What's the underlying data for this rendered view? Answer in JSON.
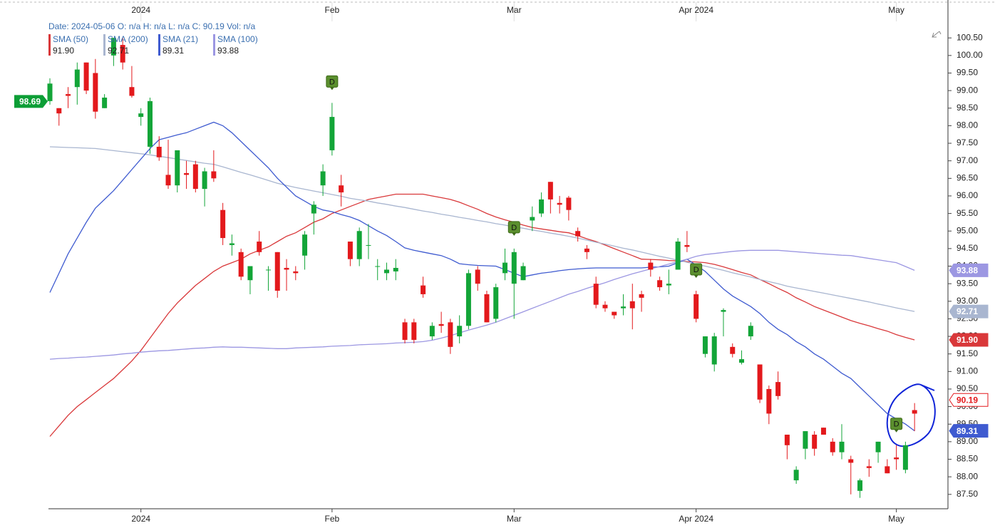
{
  "chart_data": {
    "type": "candlestick",
    "header": "Date: 2024-05-06 O: n/a H: n/a L: n/a C: 90.19 Vol: n/a",
    "categories": [
      null,
      null,
      null,
      null,
      null,
      null,
      null,
      null,
      null,
      null,
      "2024",
      null,
      null,
      null,
      null,
      null,
      null,
      null,
      null,
      null,
      null,
      null,
      null,
      null,
      null,
      null,
      null,
      null,
      null,
      null,
      null,
      "Feb",
      null,
      null,
      null,
      null,
      null,
      null,
      null,
      null,
      null,
      null,
      null,
      null,
      null,
      null,
      null,
      null,
      null,
      null,
      null,
      "Mar",
      null,
      null,
      null,
      null,
      null,
      null,
      null,
      null,
      null,
      null,
      null,
      null,
      null,
      null,
      null,
      null,
      null,
      null,
      null,
      "Apr 2024",
      null,
      null,
      null,
      null,
      null,
      null,
      null,
      null,
      null,
      null,
      null,
      null,
      null,
      null,
      null,
      null,
      null,
      null,
      null,
      null,
      null,
      "May",
      null,
      null
    ],
    "open": [
      98.7,
      98.5,
      98.9,
      99.1,
      99.8,
      99.5,
      98.5,
      100.0,
      100.3,
      99.1,
      98.25,
      97.4,
      97.4,
      96.6,
      96.3,
      96.65,
      96.9,
      96.2,
      96.7,
      95.6,
      94.6,
      94.4,
      93.6,
      94.7,
      93.9,
      94.4,
      93.95,
      93.85,
      94.3,
      95.5,
      96.3,
      97.3,
      96.3,
      94.7,
      94.2,
      94.6,
      94.0,
      93.8,
      93.85,
      92.4,
      92.4,
      93.45,
      92.0,
      92.35,
      92.4,
      92.0,
      92.3,
      93.9,
      93.2,
      92.5,
      93.8,
      93.5,
      93.6,
      95.3,
      95.5,
      96.4,
      95.8,
      95.95,
      95.0,
      94.5,
      93.5,
      92.9,
      92.7,
      92.8,
      93.0,
      93.2,
      94.1,
      93.6,
      93.45,
      93.9,
      94.6,
      93.2,
      91.5,
      91.2,
      92.7,
      91.7,
      91.25,
      92.0,
      91.2,
      90.5,
      90.7,
      89.2,
      87.9,
      88.8,
      89.2,
      89.4,
      89.0,
      88.7,
      88.5,
      87.6,
      88.3,
      88.7,
      88.3,
      88.55,
      88.2,
      89.9
    ],
    "high": [
      99.35,
      98.5,
      99.1,
      99.8,
      99.8,
      99.9,
      98.9,
      100.5,
      100.5,
      99.7,
      98.5,
      98.8,
      97.7,
      97.6,
      97.2,
      97.0,
      97.0,
      96.8,
      97.3,
      95.8,
      94.9,
      94.5,
      94.0,
      95.0,
      94.0,
      94.4,
      94.2,
      94.0,
      95.0,
      95.85,
      96.9,
      98.65,
      96.6,
      94.7,
      95.1,
      95.2,
      94.2,
      94.1,
      94.2,
      92.5,
      92.5,
      93.7,
      92.4,
      92.7,
      92.5,
      92.6,
      93.9,
      94.0,
      93.3,
      93.5,
      94.5,
      94.5,
      94.1,
      95.7,
      96.1,
      96.4,
      96.0,
      96.0,
      95.1,
      94.6,
      93.7,
      93.0,
      92.7,
      93.2,
      93.5,
      93.3,
      94.2,
      93.7,
      93.9,
      94.8,
      95.0,
      93.3,
      92.0,
      92.1,
      92.8,
      91.8,
      91.6,
      92.4,
      91.2,
      90.6,
      91.0,
      89.2,
      88.3,
      89.3,
      89.3,
      89.4,
      89.1,
      89.5,
      88.6,
      87.95,
      88.5,
      89.0,
      88.5,
      88.9,
      89.0,
      90.1
    ],
    "low": [
      98.6,
      98.0,
      98.5,
      98.6,
      98.9,
      98.2,
      98.5,
      99.7,
      99.6,
      98.8,
      98.0,
      97.2,
      97.0,
      96.2,
      96.1,
      96.2,
      96.1,
      95.7,
      96.4,
      94.6,
      94.3,
      93.6,
      93.2,
      94.3,
      93.3,
      93.1,
      93.3,
      93.6,
      93.9,
      94.9,
      96.0,
      97.15,
      95.7,
      94.0,
      94.0,
      94.2,
      93.6,
      93.6,
      93.6,
      91.8,
      91.8,
      93.1,
      91.9,
      92.1,
      91.5,
      91.8,
      92.2,
      93.3,
      92.4,
      92.4,
      93.6,
      92.5,
      93.6,
      95.0,
      95.4,
      95.5,
      95.5,
      95.3,
      94.7,
      94.2,
      92.8,
      92.7,
      92.5,
      92.6,
      92.2,
      92.7,
      93.7,
      93.3,
      93.2,
      93.9,
      94.4,
      92.4,
      91.4,
      91.0,
      92.0,
      91.4,
      91.2,
      91.9,
      90.1,
      89.5,
      90.2,
      88.5,
      87.8,
      88.5,
      88.6,
      89.2,
      88.6,
      88.5,
      87.5,
      87.4,
      88.0,
      88.4,
      88.1,
      88.2,
      88.1,
      89.3
    ],
    "close": [
      99.2,
      98.35,
      98.85,
      99.6,
      99.0,
      98.4,
      98.8,
      100.5,
      99.8,
      98.85,
      98.35,
      98.7,
      97.1,
      96.3,
      97.3,
      96.6,
      96.2,
      96.7,
      96.5,
      94.8,
      94.65,
      93.7,
      94.0,
      94.4,
      93.9,
      93.3,
      93.9,
      93.8,
      94.9,
      95.75,
      96.7,
      98.25,
      96.1,
      94.2,
      95.0,
      94.6,
      94.0,
      93.9,
      93.95,
      91.9,
      91.9,
      93.2,
      92.3,
      92.3,
      91.7,
      92.3,
      93.8,
      93.5,
      92.4,
      93.4,
      94.1,
      94.4,
      94.0,
      95.4,
      95.9,
      95.9,
      95.75,
      95.6,
      94.85,
      94.4,
      92.9,
      92.8,
      92.6,
      92.85,
      92.8,
      93.1,
      93.9,
      93.4,
      93.5,
      94.7,
      94.55,
      92.5,
      92.0,
      92.0,
      92.75,
      91.5,
      91.35,
      92.3,
      90.2,
      89.8,
      90.3,
      88.9,
      88.2,
      89.3,
      88.8,
      89.2,
      88.7,
      89.0,
      88.4,
      87.9,
      88.25,
      89.0,
      88.1,
      88.5,
      88.9,
      89.8
    ],
    "up_color": "#13a538",
    "down_color": "#e3191c",
    "series": [
      {
        "name": "SMA (50)",
        "legend_value": "91.90",
        "color": "#d9383a",
        "values": [
          89.15,
          89.45,
          89.75,
          90.0,
          90.2,
          90.4,
          90.6,
          90.8,
          91.05,
          91.3,
          91.6,
          91.95,
          92.3,
          92.65,
          92.95,
          93.2,
          93.45,
          93.65,
          93.85,
          94.0,
          94.1,
          94.2,
          94.35,
          94.45,
          94.55,
          94.7,
          94.85,
          94.95,
          95.1,
          95.25,
          95.35,
          95.5,
          95.6,
          95.7,
          95.8,
          95.9,
          95.95,
          96.0,
          96.05,
          96.05,
          96.05,
          96.05,
          96.0,
          95.95,
          95.9,
          95.82,
          95.72,
          95.62,
          95.5,
          95.4,
          95.32,
          95.25,
          95.17,
          95.1,
          95.06,
          95.02,
          94.98,
          94.95,
          94.87,
          94.78,
          94.7,
          94.6,
          94.5,
          94.4,
          94.3,
          94.2,
          94.19,
          94.18,
          94.16,
          94.15,
          94.13,
          94.12,
          94.1,
          94.05,
          93.98,
          93.9,
          93.82,
          93.75,
          93.62,
          93.5,
          93.37,
          93.25,
          93.1,
          92.98,
          92.85,
          92.75,
          92.65,
          92.55,
          92.45,
          92.37,
          92.3,
          92.22,
          92.15,
          92.05,
          91.97,
          91.9
        ]
      },
      {
        "name": "SMA (200)",
        "legend_value": "92.71",
        "color": "#a9b6d0",
        "values": [
          97.4,
          97.39,
          97.38,
          97.37,
          97.36,
          97.35,
          97.32,
          97.29,
          97.26,
          97.23,
          97.2,
          97.17,
          97.13,
          97.09,
          97.05,
          97.01,
          96.97,
          96.93,
          96.9,
          96.83,
          96.75,
          96.67,
          96.6,
          96.52,
          96.44,
          96.36,
          96.3,
          96.24,
          96.19,
          96.14,
          96.09,
          96.04,
          95.99,
          95.93,
          95.89,
          95.85,
          95.8,
          95.76,
          95.71,
          95.67,
          95.62,
          95.57,
          95.53,
          95.48,
          95.44,
          95.39,
          95.35,
          95.3,
          95.26,
          95.21,
          95.17,
          95.12,
          95.08,
          95.03,
          94.99,
          94.94,
          94.9,
          94.85,
          94.8,
          94.74,
          94.68,
          94.63,
          94.57,
          94.51,
          94.46,
          94.4,
          94.34,
          94.28,
          94.23,
          94.17,
          94.11,
          94.05,
          94.0,
          93.94,
          93.88,
          93.81,
          93.75,
          93.69,
          93.62,
          93.56,
          93.5,
          93.43,
          93.38,
          93.33,
          93.28,
          93.23,
          93.18,
          93.13,
          93.08,
          93.03,
          92.98,
          92.92,
          92.87,
          92.81,
          92.76,
          92.71
        ]
      },
      {
        "name": "SMA (21)",
        "legend_value": "89.31",
        "color": "#3f5bd0",
        "values": [
          93.25,
          93.8,
          94.35,
          94.8,
          95.25,
          95.65,
          95.9,
          96.15,
          96.45,
          96.75,
          97.05,
          97.35,
          97.6,
          97.67,
          97.74,
          97.8,
          97.9,
          98.0,
          98.1,
          98.0,
          97.8,
          97.55,
          97.3,
          97.05,
          96.8,
          96.5,
          96.25,
          96.0,
          95.85,
          95.7,
          95.6,
          95.55,
          95.47,
          95.4,
          95.3,
          95.15,
          95.0,
          94.87,
          94.7,
          94.52,
          94.45,
          94.4,
          94.35,
          94.3,
          94.2,
          94.07,
          94.04,
          94.02,
          94.01,
          94.0,
          93.9,
          93.8,
          93.7,
          93.75,
          93.8,
          93.83,
          93.87,
          93.9,
          93.92,
          93.94,
          93.95,
          93.95,
          93.95,
          93.95,
          93.95,
          93.95,
          93.97,
          93.98,
          94.0,
          94.1,
          94.2,
          94.03,
          93.85,
          93.6,
          93.35,
          93.15,
          93.0,
          92.85,
          92.65,
          92.4,
          92.2,
          92.05,
          91.85,
          91.7,
          91.5,
          91.35,
          91.15,
          90.95,
          90.8,
          90.55,
          90.3,
          90.05,
          89.8,
          89.65,
          89.5,
          89.31
        ]
      },
      {
        "name": "SMA (100)",
        "legend_value": "93.88",
        "color": "#9c97e2",
        "values": [
          91.35,
          91.37,
          91.38,
          91.4,
          91.41,
          91.43,
          91.45,
          91.47,
          91.5,
          91.52,
          91.55,
          91.57,
          91.59,
          91.6,
          91.62,
          91.64,
          91.66,
          91.67,
          91.69,
          91.7,
          91.69,
          91.69,
          91.68,
          91.67,
          91.66,
          91.65,
          91.65,
          91.67,
          91.68,
          91.69,
          91.7,
          91.72,
          91.73,
          91.74,
          91.76,
          91.77,
          91.78,
          91.79,
          91.81,
          91.82,
          91.83,
          91.85,
          91.89,
          91.95,
          92.02,
          92.1,
          92.18,
          92.25,
          92.32,
          92.4,
          92.5,
          92.6,
          92.7,
          92.8,
          92.9,
          93.0,
          93.1,
          93.2,
          93.28,
          93.37,
          93.45,
          93.53,
          93.62,
          93.7,
          93.78,
          93.85,
          93.92,
          93.99,
          94.06,
          94.13,
          94.2,
          94.28,
          94.33,
          94.36,
          94.39,
          94.42,
          94.44,
          94.45,
          94.45,
          94.45,
          94.45,
          94.43,
          94.41,
          94.39,
          94.37,
          94.35,
          94.33,
          94.31,
          94.3,
          94.26,
          94.22,
          94.18,
          94.14,
          94.1,
          93.99,
          93.88
        ]
      }
    ],
    "price_marker": {
      "value": 98.69,
      "label": "98.69",
      "color": "#0c9e36"
    },
    "current_price": {
      "value": 90.19,
      "label": "90.19",
      "color": "#e3191c"
    },
    "dividend_markers": {
      "label": "D",
      "at": [
        31,
        51,
        71,
        93
      ],
      "color": "#5b8f2e"
    },
    "ylim": [
      87.09,
      101.58
    ],
    "yticks": [
      {
        "value": 87.5,
        "label": "87.50"
      },
      {
        "value": 88,
        "label": "88.00"
      },
      {
        "value": 88.5,
        "label": "88.50"
      },
      {
        "value": 89,
        "label": "89.00"
      },
      {
        "value": 89.5,
        "label": "89.50"
      },
      {
        "value": 90,
        "label": "90.00"
      },
      {
        "value": 90.5,
        "label": "90.50"
      },
      {
        "value": 91,
        "label": "91.00"
      },
      {
        "value": 91.5,
        "label": "91.50"
      },
      {
        "value": 92,
        "label": "92.00"
      },
      {
        "value": 92.5,
        "label": "92.50"
      },
      {
        "value": 93,
        "label": "93.00"
      },
      {
        "value": 93.5,
        "label": "93.50"
      },
      {
        "value": 94,
        "label": "94.00"
      },
      {
        "value": 94.5,
        "label": "94.50"
      },
      {
        "value": 95,
        "label": "95.00"
      },
      {
        "value": 95.5,
        "label": "95.50"
      },
      {
        "value": 96,
        "label": "96.00"
      },
      {
        "value": 96.5,
        "label": "96.50"
      },
      {
        "value": 97,
        "label": "97.00"
      },
      {
        "value": 97.5,
        "label": "97.50"
      },
      {
        "value": 98,
        "label": "98.00"
      },
      {
        "value": 98.5,
        "label": "98.50"
      },
      {
        "value": 99,
        "label": "99.00"
      },
      {
        "value": 99.5,
        "label": "99.50"
      },
      {
        "value": 100,
        "label": "100.00"
      },
      {
        "value": 100.5,
        "label": "100.50"
      }
    ]
  }
}
